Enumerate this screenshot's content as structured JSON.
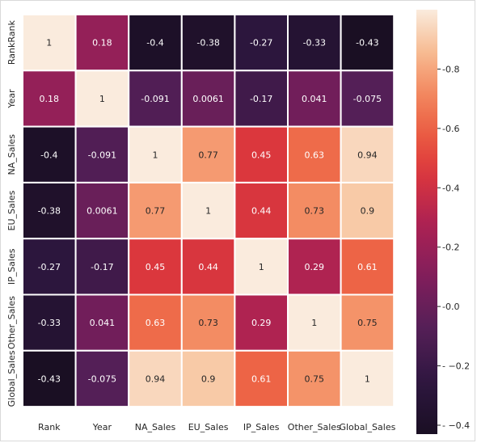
{
  "chart_data": {
    "type": "heatmap",
    "x_labels": [
      "Rank",
      "Year",
      "NA_Sales",
      "EU_Sales",
      "IP_Sales",
      "Other_Sales",
      "Global_Sales"
    ],
    "y_labels": [
      "RankRank",
      "Year",
      "NA_Sales",
      "EU_Sales",
      "IP_Sales",
      "Other_Sales",
      "Global_Sales"
    ],
    "values": [
      [
        1,
        0.18,
        -0.4,
        -0.38,
        -0.27,
        -0.33,
        -0.43
      ],
      [
        0.18,
        1,
        -0.091,
        0.0061,
        -0.17,
        0.041,
        -0.075
      ],
      [
        -0.4,
        -0.091,
        1,
        0.77,
        0.45,
        0.63,
        0.94
      ],
      [
        -0.38,
        0.0061,
        0.77,
        1,
        0.44,
        0.73,
        0.9
      ],
      [
        -0.27,
        -0.17,
        0.45,
        0.44,
        1,
        0.29,
        0.61
      ],
      [
        -0.33,
        0.041,
        0.63,
        0.73,
        0.29,
        1,
        0.75
      ],
      [
        -0.43,
        -0.075,
        0.94,
        0.9,
        0.61,
        0.75,
        1
      ]
    ],
    "cell_labels": [
      [
        "1",
        "0.18",
        "-0.4",
        "-0.38",
        "-0.27",
        "-0.33",
        "-0.43"
      ],
      [
        "0.18",
        "1",
        "-0.091",
        "0.0061",
        "-0.17",
        "0.041",
        "-0.075"
      ],
      [
        "-0.4",
        "-0.091",
        "1",
        "0.77",
        "0.45",
        "0.63",
        "0.94"
      ],
      [
        "-0.38",
        "0.0061",
        "0.77",
        "1",
        "0.44",
        "0.73",
        "0.9"
      ],
      [
        "-0.27",
        "-0.17",
        "0.45",
        "0.44",
        "1",
        "0.29",
        "0.61"
      ],
      [
        "-0.33",
        "0.041",
        "0.63",
        "0.73",
        "0.29",
        "1",
        "0.75"
      ],
      [
        "-0.43",
        "-0.075",
        "0.94",
        "0.9",
        "0.61",
        "0.75",
        "1"
      ]
    ],
    "colorbar": {
      "range": [
        -0.43,
        1
      ],
      "ticks": [
        0.8,
        0.6,
        0.4,
        0.2,
        0.0,
        -0.2,
        -0.4
      ],
      "tick_labels": [
        "-0.8",
        "-0.6",
        "-0.4",
        "-0.2",
        "-0.0",
        "- −0.2",
        "- −0.4"
      ]
    },
    "colormap": "rocket",
    "cell_border_color": "#ffffff",
    "light_text_color": "#ffffff",
    "dark_text_color": "#262626"
  }
}
